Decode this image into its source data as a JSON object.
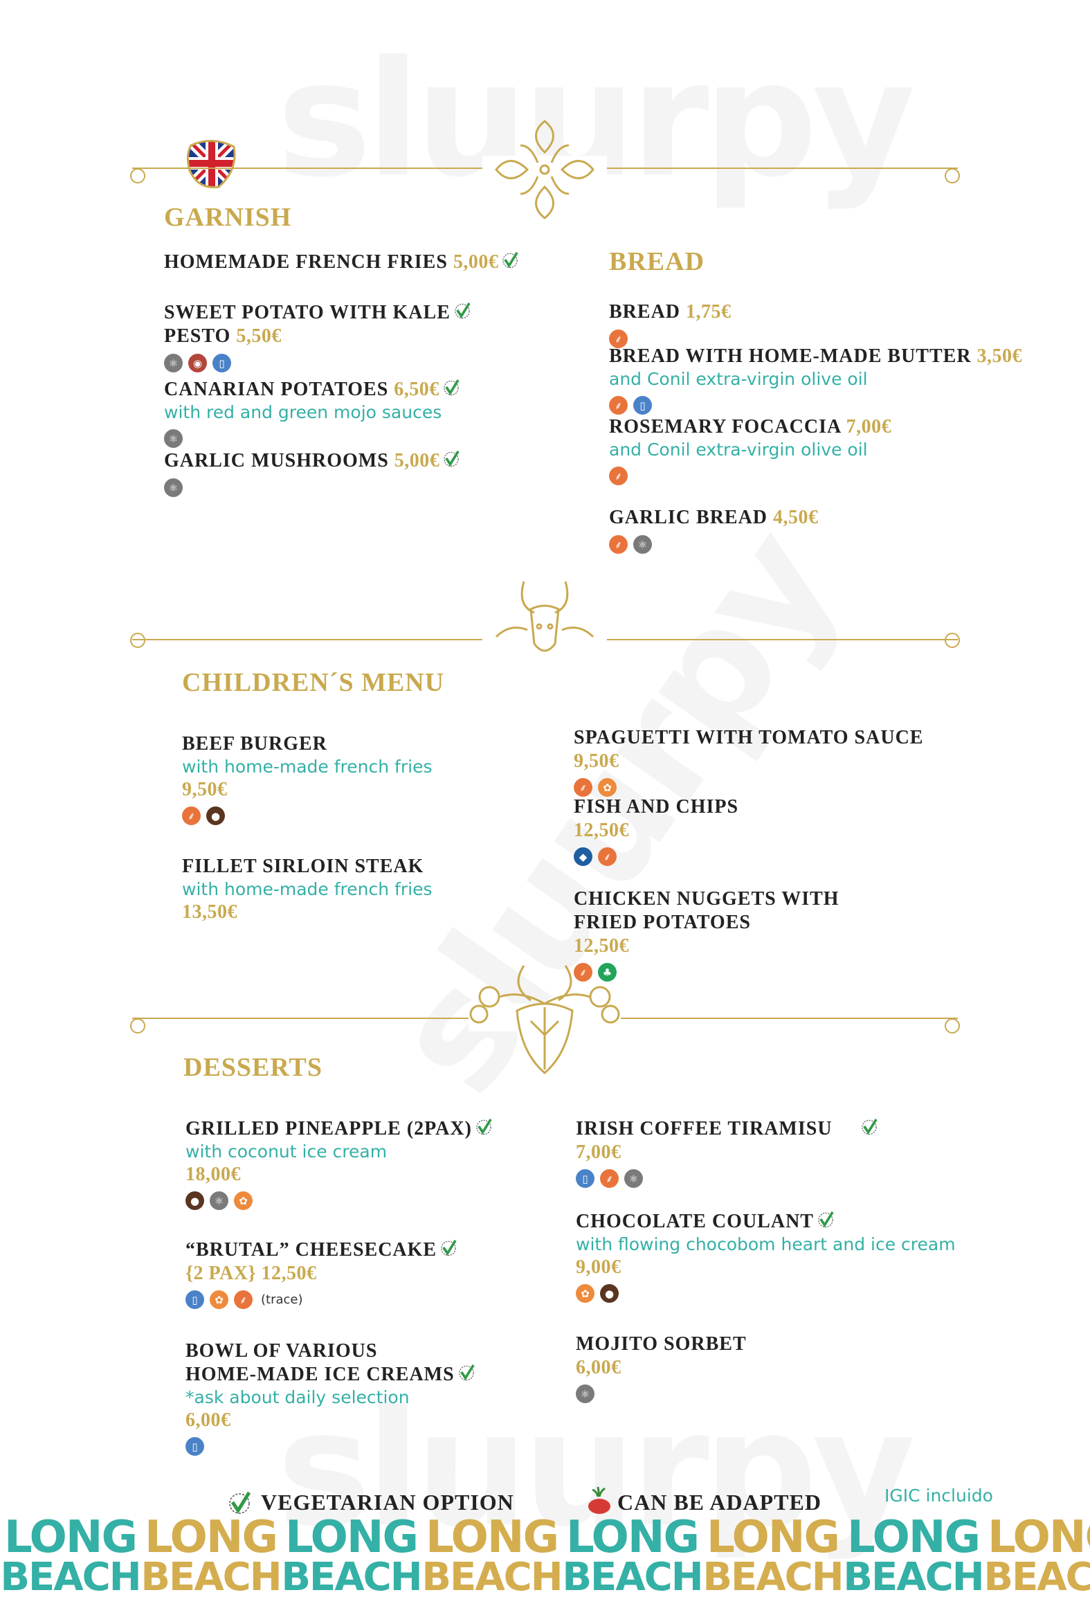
{
  "watermark": "sluurpy",
  "language_flag": "uk-flag",
  "colors": {
    "gold": "#c9a94f",
    "teal": "#34b0a6",
    "text": "#222222"
  },
  "sections": [
    {
      "title": "GARNISH",
      "items": [
        {
          "name": [
            "HOMEMADE FRENCH FRIES"
          ],
          "price": "5,00€",
          "price_inline": true,
          "vegetarian": true,
          "allergens": []
        },
        {
          "name": [
            "SWEET POTATO WITH KALE",
            "PESTO"
          ],
          "price": "5,50€",
          "price_inline": true,
          "vegetarian": true,
          "veg_on_line": 0,
          "allergens": [
            "sulphites",
            "nuts",
            "milk"
          ]
        },
        {
          "name": [
            "CANARIAN POTATOES"
          ],
          "price": "6,50€",
          "price_inline": true,
          "vegetarian": true,
          "subtitle": "with red and green mojo sauces",
          "allergens": [
            "sulphites"
          ]
        },
        {
          "name": [
            "GARLIC MUSHROOMS"
          ],
          "price": "5,00€",
          "price_inline": true,
          "vegetarian": true,
          "allergens": [
            "sulphites"
          ]
        }
      ]
    },
    {
      "title": "BREAD",
      "items": [
        {
          "name": [
            "BREAD"
          ],
          "price": "1,75€",
          "price_inline": true,
          "allergens": [
            "gluten"
          ]
        },
        {
          "name": [
            "BREAD WITH HOME-MADE BUTTER"
          ],
          "price": "3,50€",
          "price_inline": true,
          "subtitle": "and Conil extra-virgin olive oil",
          "allergens": [
            "gluten",
            "milk"
          ]
        },
        {
          "name": [
            "ROSEMARY FOCACCIA"
          ],
          "price": "7,00€",
          "price_inline": true,
          "subtitle": "and Conil extra-virgin olive oil",
          "allergens": [
            "gluten"
          ]
        },
        {
          "name": [
            "GARLIC BREAD"
          ],
          "price": "4,50€",
          "price_inline": true,
          "allergens": [
            "gluten",
            "sulphites"
          ]
        }
      ]
    },
    {
      "title": "CHILDREN´S MENU",
      "items": [
        {
          "name": [
            "BEEF BURGER"
          ],
          "subtitle": "with home-made french fries",
          "price": "9,50€",
          "allergens": [
            "gluten",
            "egg"
          ]
        },
        {
          "name": [
            "FILLET SIRLOIN STEAK"
          ],
          "subtitle": "with home-made french fries",
          "price": "13,50€",
          "allergens": []
        },
        {
          "name": [
            "SPAGUETTI WITH TOMATO SAUCE"
          ],
          "price": "9,50€",
          "allergens": [
            "gluten",
            "crustaceans"
          ]
        },
        {
          "name": [
            "FISH AND CHIPS"
          ],
          "price": "12,50€",
          "allergens": [
            "fish",
            "gluten"
          ]
        },
        {
          "name": [
            "CHICKEN NUGGETS WITH",
            "FRIED POTATOES"
          ],
          "price": "12,50€",
          "allergens": [
            "gluten",
            "celery"
          ]
        }
      ]
    },
    {
      "title": "DESSERTS",
      "items": [
        {
          "name": [
            "GRILLED PINEAPPLE (2PAX)"
          ],
          "vegetarian": true,
          "subtitle": "with coconut ice cream",
          "price": "18,00€",
          "allergens": [
            "egg",
            "sulphites",
            "crustaceans"
          ]
        },
        {
          "name": [
            "“BRUTAL” CHEESECAKE"
          ],
          "vegetarian": true,
          "price": "{2 PAX} 12,50€",
          "allergens": [
            "milk",
            "crustaceans",
            "gluten"
          ],
          "note": "(trace)"
        },
        {
          "name": [
            "BOWL OF VARIOUS",
            "HOME-MADE ICE CREAMS"
          ],
          "vegetarian": true,
          "subtitle": "*ask about daily selection",
          "price": "6,00€",
          "allergens": [
            "milk"
          ]
        },
        {
          "name": [
            "IRISH COFFEE TIRAMISU"
          ],
          "vegetarian": true,
          "price": "7,00€",
          "allergens": [
            "milk",
            "gluten",
            "sulphites"
          ]
        },
        {
          "name": [
            "CHOCOLATE COULANT"
          ],
          "vegetarian": true,
          "subtitle": "with flowing chocobom heart and ice cream",
          "price": "9,00€",
          "allergens": [
            "crustaceans",
            "egg"
          ]
        },
        {
          "name": [
            "MOJITO SORBET"
          ],
          "price": "6,00€",
          "allergens": [
            "sulphites"
          ]
        }
      ]
    }
  ],
  "allergen_icons": {
    "sulphites": {
      "icon": "molecule-icon",
      "color": "#7a7a7a"
    },
    "nuts": {
      "icon": "nut-icon",
      "color": "#b2463a"
    },
    "milk": {
      "icon": "milk-carton-icon",
      "color": "#4a82c8"
    },
    "gluten": {
      "icon": "wheat-icon",
      "color": "#e8743b"
    },
    "egg": {
      "icon": "egg-icon",
      "color": "#5a3520"
    },
    "fish": {
      "icon": "fish-icon",
      "color": "#1f5fa0"
    },
    "crustaceans": {
      "icon": "shellfish-icon",
      "color": "#ee8a3c"
    },
    "celery": {
      "icon": "celery-icon",
      "color": "#22a45a"
    }
  },
  "legend": {
    "vegetarian": "VEGETARIAN OPTION",
    "adapted": "CAN BE ADAPTED",
    "tax": "IGIC incluido"
  },
  "brand": {
    "line1": "LONG",
    "line2": "BEACH",
    "colors": [
      "#34b0a6",
      "#d4ad4e"
    ]
  }
}
